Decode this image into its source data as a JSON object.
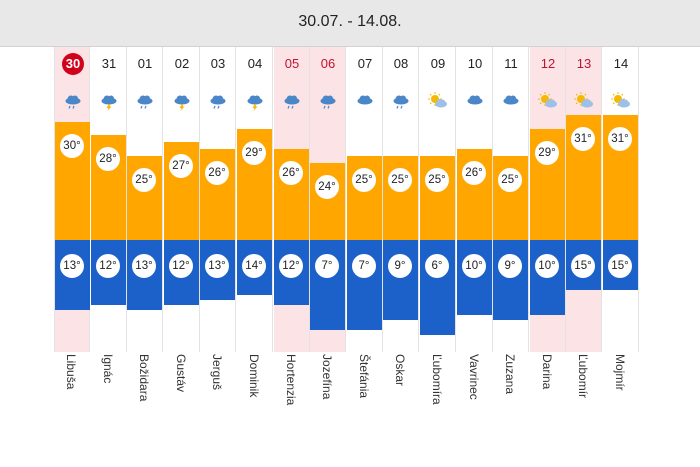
{
  "header": {
    "title": "30.07. - 14.08."
  },
  "scale": {
    "tmax_top": 33,
    "tmin_bottom": 1
  },
  "days": [
    {
      "date": "30",
      "name": "Libuša",
      "tmax": "30°",
      "tmin": "13°",
      "max_val": 30,
      "min_val": 13,
      "min_low": 11,
      "holiday": true,
      "today": true,
      "icon": "cloud-rain-icon"
    },
    {
      "date": "31",
      "name": "Ignác",
      "tmax": "28°",
      "tmin": "12°",
      "max_val": 28,
      "min_val": 12,
      "min_low": 12,
      "holiday": false,
      "today": false,
      "icon": "cloud-storm-icon"
    },
    {
      "date": "01",
      "name": "Božidara",
      "tmax": "25°",
      "tmin": "13°",
      "max_val": 25,
      "min_val": 13,
      "min_low": 11,
      "holiday": false,
      "today": false,
      "icon": "cloud-rain-icon"
    },
    {
      "date": "02",
      "name": "Gustáv",
      "tmax": "27°",
      "tmin": "12°",
      "max_val": 27,
      "min_val": 12,
      "min_low": 12,
      "holiday": false,
      "today": false,
      "icon": "cloud-storm-icon"
    },
    {
      "date": "03",
      "name": "Jerguš",
      "tmax": "26°",
      "tmin": "13°",
      "max_val": 26,
      "min_val": 13,
      "min_low": 13,
      "holiday": false,
      "today": false,
      "icon": "cloud-rain-icon"
    },
    {
      "date": "04",
      "name": "Dominik",
      "tmax": "29°",
      "tmin": "14°",
      "max_val": 29,
      "min_val": 14,
      "min_low": 14,
      "holiday": false,
      "today": false,
      "icon": "cloud-storm-icon"
    },
    {
      "date": "05",
      "name": "Hortenzia",
      "tmax": "26°",
      "tmin": "12°",
      "max_val": 26,
      "min_val": 12,
      "min_low": 12,
      "holiday": true,
      "today": false,
      "icon": "cloud-rain-icon"
    },
    {
      "date": "06",
      "name": "Jozefína",
      "tmax": "24°",
      "tmin": "7°",
      "max_val": 24,
      "min_val": 7,
      "min_low": 7,
      "holiday": true,
      "today": false,
      "icon": "cloud-rain-icon"
    },
    {
      "date": "07",
      "name": "Štefánia",
      "tmax": "25°",
      "tmin": "7°",
      "max_val": 25,
      "min_val": 7,
      "min_low": 7,
      "holiday": false,
      "today": false,
      "icon": "cloud-icon"
    },
    {
      "date": "08",
      "name": "Oskar",
      "tmax": "25°",
      "tmin": "9°",
      "max_val": 25,
      "min_val": 9,
      "min_low": 9,
      "holiday": false,
      "today": false,
      "icon": "cloud-rain-icon"
    },
    {
      "date": "09",
      "name": "Ľubomíra",
      "tmax": "25°",
      "tmin": "6°",
      "max_val": 25,
      "min_val": 6,
      "min_low": 6,
      "holiday": false,
      "today": false,
      "icon": "partly-cloudy-icon"
    },
    {
      "date": "10",
      "name": "Vavrinec",
      "tmax": "26°",
      "tmin": "10°",
      "max_val": 26,
      "min_val": 10,
      "min_low": 10,
      "holiday": false,
      "today": false,
      "icon": "cloud-icon"
    },
    {
      "date": "11",
      "name": "Zuzana",
      "tmax": "25°",
      "tmin": "9°",
      "max_val": 25,
      "min_val": 9,
      "min_low": 9,
      "holiday": false,
      "today": false,
      "icon": "cloud-icon"
    },
    {
      "date": "12",
      "name": "Darina",
      "tmax": "29°",
      "tmin": "10°",
      "max_val": 29,
      "min_val": 10,
      "min_low": 10,
      "holiday": true,
      "today": false,
      "icon": "partly-cloudy-icon"
    },
    {
      "date": "13",
      "name": "Ľubomír",
      "tmax": "31°",
      "tmin": "15°",
      "max_val": 31,
      "min_val": 15,
      "min_low": 15,
      "holiday": true,
      "today": false,
      "icon": "partly-cloudy-icon"
    },
    {
      "date": "14",
      "name": "Mojmír",
      "tmax": "31°",
      "tmin": "15°",
      "max_val": 31,
      "min_val": 15,
      "min_low": 15,
      "holiday": false,
      "today": false,
      "icon": "partly-cloudy-icon"
    }
  ],
  "colors": {
    "max_bar": "#ffa600",
    "min_bar": "#1c61c9",
    "holiday_bg": "#fbe3e6",
    "today_circle": "#d0021b",
    "holiday_text": "#c0142e"
  }
}
